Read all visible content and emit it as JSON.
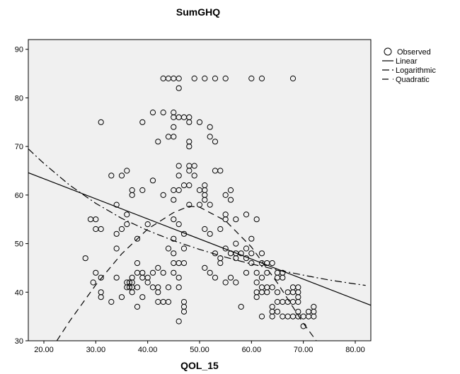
{
  "chart_data": {
    "type": "scatter",
    "title": "SumGHQ",
    "xlabel": "QOL_15",
    "ylabel": "",
    "xlim": [
      17,
      83
    ],
    "ylim": [
      30,
      92
    ],
    "xticks": [
      20,
      30,
      40,
      50,
      60,
      70,
      80
    ],
    "xtick_labels": [
      "20.00",
      "30.00",
      "40.00",
      "50.00",
      "60.00",
      "70.00",
      "80.00"
    ],
    "yticks": [
      30,
      40,
      50,
      60,
      70,
      80,
      90
    ],
    "ytick_labels": [
      "30",
      "40",
      "50",
      "60",
      "70",
      "80",
      "90"
    ],
    "grid": false,
    "legend_position": "top-right",
    "colors": {
      "plot_bg": "#f0f0f0",
      "marker": "#000000",
      "line": "#000000"
    },
    "legend": [
      "Observed",
      "Linear",
      "Logarithmic",
      "Quadratic"
    ],
    "series": [
      {
        "name": "Observed",
        "kind": "points",
        "points": [
          [
            28,
            47
          ],
          [
            29,
            55
          ],
          [
            30,
            55
          ],
          [
            30,
            53
          ],
          [
            29.5,
            42
          ],
          [
            30,
            44
          ],
          [
            31,
            53
          ],
          [
            31,
            75
          ],
          [
            31,
            43
          ],
          [
            31,
            40
          ],
          [
            31,
            39
          ],
          [
            33,
            64
          ],
          [
            33,
            38
          ],
          [
            34,
            58
          ],
          [
            34,
            52
          ],
          [
            34,
            49
          ],
          [
            34,
            43
          ],
          [
            35,
            64
          ],
          [
            35,
            53
          ],
          [
            35,
            39
          ],
          [
            36,
            65
          ],
          [
            36,
            56
          ],
          [
            36,
            54
          ],
          [
            36,
            42
          ],
          [
            36,
            41
          ],
          [
            36.5,
            42
          ],
          [
            36.5,
            41
          ],
          [
            37,
            61
          ],
          [
            37,
            60
          ],
          [
            37,
            43
          ],
          [
            37,
            42
          ],
          [
            37,
            41
          ],
          [
            37,
            40
          ],
          [
            38,
            51
          ],
          [
            38,
            46
          ],
          [
            38,
            44
          ],
          [
            38,
            41
          ],
          [
            38,
            37
          ],
          [
            39,
            75
          ],
          [
            39,
            61
          ],
          [
            39,
            44
          ],
          [
            39,
            43
          ],
          [
            39,
            39
          ],
          [
            40,
            54
          ],
          [
            40,
            43
          ],
          [
            40,
            42
          ],
          [
            41,
            77
          ],
          [
            41,
            63
          ],
          [
            41,
            44
          ],
          [
            41,
            41
          ],
          [
            42,
            71
          ],
          [
            42,
            45
          ],
          [
            42,
            41
          ],
          [
            42,
            40
          ],
          [
            42,
            38
          ],
          [
            43,
            84
          ],
          [
            43,
            77
          ],
          [
            43,
            60
          ],
          [
            43,
            44
          ],
          [
            43,
            38
          ],
          [
            44,
            84
          ],
          [
            44,
            72
          ],
          [
            44,
            49
          ],
          [
            44,
            41
          ],
          [
            44,
            38
          ],
          [
            45,
            84
          ],
          [
            45,
            77
          ],
          [
            45,
            76
          ],
          [
            45,
            74
          ],
          [
            45,
            72
          ],
          [
            45,
            61
          ],
          [
            45,
            59
          ],
          [
            45,
            55
          ],
          [
            45,
            51
          ],
          [
            45,
            48
          ],
          [
            45,
            46
          ],
          [
            45,
            44
          ],
          [
            46,
            84
          ],
          [
            46,
            82
          ],
          [
            46,
            76
          ],
          [
            46,
            66
          ],
          [
            46,
            64
          ],
          [
            46,
            61
          ],
          [
            46,
            54
          ],
          [
            46,
            46
          ],
          [
            46,
            43
          ],
          [
            46,
            41
          ],
          [
            46,
            34
          ],
          [
            47,
            76
          ],
          [
            47,
            62
          ],
          [
            47,
            52
          ],
          [
            47,
            49
          ],
          [
            47,
            46
          ],
          [
            47,
            38
          ],
          [
            47,
            37
          ],
          [
            47,
            36
          ],
          [
            48,
            76
          ],
          [
            48,
            75
          ],
          [
            48,
            71
          ],
          [
            48,
            70
          ],
          [
            48,
            66
          ],
          [
            48,
            65
          ],
          [
            48,
            62
          ],
          [
            48,
            58
          ],
          [
            49,
            84
          ],
          [
            49,
            66
          ],
          [
            49,
            64
          ],
          [
            50,
            75
          ],
          [
            50,
            61
          ],
          [
            50,
            58
          ],
          [
            51,
            84
          ],
          [
            51,
            62
          ],
          [
            51,
            61
          ],
          [
            51,
            60
          ],
          [
            51,
            59
          ],
          [
            51,
            53
          ],
          [
            51,
            45
          ],
          [
            52,
            74
          ],
          [
            52,
            72
          ],
          [
            52,
            58
          ],
          [
            52,
            52
          ],
          [
            52,
            44
          ],
          [
            53,
            84
          ],
          [
            53,
            71
          ],
          [
            53,
            65
          ],
          [
            53,
            48
          ],
          [
            53,
            43
          ],
          [
            54,
            65
          ],
          [
            54,
            53
          ],
          [
            54,
            47
          ],
          [
            54,
            46
          ],
          [
            55,
            84
          ],
          [
            55,
            60
          ],
          [
            55,
            56
          ],
          [
            55,
            55
          ],
          [
            55,
            49
          ],
          [
            55,
            42
          ],
          [
            56,
            61
          ],
          [
            56,
            59
          ],
          [
            56,
            48
          ],
          [
            56,
            43
          ],
          [
            57,
            55
          ],
          [
            57,
            50
          ],
          [
            57,
            48
          ],
          [
            57,
            47
          ],
          [
            57,
            42
          ],
          [
            58,
            48
          ],
          [
            58,
            37
          ],
          [
            59,
            56
          ],
          [
            59,
            49
          ],
          [
            59,
            47
          ],
          [
            59,
            44
          ],
          [
            60,
            84
          ],
          [
            60,
            51
          ],
          [
            60,
            48
          ],
          [
            60,
            46
          ],
          [
            61,
            55
          ],
          [
            61,
            44
          ],
          [
            61,
            42
          ],
          [
            61,
            40
          ],
          [
            61,
            39
          ],
          [
            62,
            84
          ],
          [
            62,
            48
          ],
          [
            62,
            46
          ],
          [
            62,
            43
          ],
          [
            62,
            41
          ],
          [
            62,
            40
          ],
          [
            62,
            35
          ],
          [
            63,
            46
          ],
          [
            63,
            44
          ],
          [
            63,
            41
          ],
          [
            63,
            40
          ],
          [
            64,
            46
          ],
          [
            64,
            41
          ],
          [
            64,
            37
          ],
          [
            64,
            36
          ],
          [
            64,
            35
          ],
          [
            65,
            44
          ],
          [
            65,
            43
          ],
          [
            65,
            40
          ],
          [
            65,
            38
          ],
          [
            65,
            36
          ],
          [
            66,
            44
          ],
          [
            66,
            43
          ],
          [
            66,
            38
          ],
          [
            66,
            35
          ],
          [
            67,
            40
          ],
          [
            67,
            38
          ],
          [
            67,
            35
          ],
          [
            68,
            84
          ],
          [
            68,
            41
          ],
          [
            68,
            40
          ],
          [
            68,
            38
          ],
          [
            68,
            35
          ],
          [
            69,
            41
          ],
          [
            69,
            40
          ],
          [
            69,
            39
          ],
          [
            69,
            38
          ],
          [
            69,
            36
          ],
          [
            69,
            35
          ],
          [
            70,
            35
          ],
          [
            70,
            33
          ],
          [
            71,
            36
          ],
          [
            71,
            35
          ],
          [
            72,
            37
          ],
          [
            72,
            36
          ],
          [
            72,
            35
          ]
        ]
      },
      {
        "name": "Linear",
        "kind": "line",
        "dash": "solid",
        "points": [
          [
            17,
            64.6
          ],
          [
            83,
            37.3
          ]
        ]
      },
      {
        "name": "Logarithmic",
        "kind": "line",
        "dash": "dashdot",
        "points": [
          [
            17,
            69.5
          ],
          [
            20,
            66.5
          ],
          [
            25,
            62.0
          ],
          [
            30,
            58.3
          ],
          [
            35,
            55.2
          ],
          [
            40,
            52.7
          ],
          [
            45,
            50.6
          ],
          [
            50,
            48.8
          ],
          [
            55,
            47.2
          ],
          [
            60,
            45.8
          ],
          [
            65,
            44.6
          ],
          [
            70,
            43.5
          ],
          [
            75,
            42.5
          ],
          [
            80,
            41.7
          ],
          [
            82,
            41.4
          ]
        ]
      },
      {
        "name": "Quadratic",
        "kind": "line",
        "dash": "dashed",
        "points": [
          [
            22.5,
            30.0
          ],
          [
            25,
            34.1
          ],
          [
            30,
            41.5
          ],
          [
            35,
            47.9
          ],
          [
            40,
            53.0
          ],
          [
            45,
            56.4
          ],
          [
            48,
            57.7
          ],
          [
            50,
            57.5
          ],
          [
            55,
            54.7
          ],
          [
            60,
            49.3
          ],
          [
            65,
            41.9
          ],
          [
            70,
            33.6
          ],
          [
            72.5,
            30.0
          ]
        ]
      }
    ]
  }
}
